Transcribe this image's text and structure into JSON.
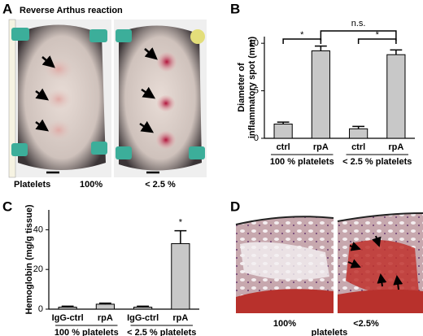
{
  "panels": {
    "A": {
      "label": "A",
      "title": "Reverse Arthus reaction",
      "captions": [
        "Platelets",
        "100%",
        "< 2.5 %"
      ]
    },
    "D": {
      "label": "D",
      "captions": [
        "100%",
        "<2.5%"
      ],
      "group": "platelets"
    }
  },
  "chart_data": [
    {
      "type": "bar",
      "panel": "B",
      "ylabel": [
        "Diameter of",
        "inflammatory spot (mm)"
      ],
      "categories": [
        "ctrl",
        "rpA",
        "ctrl",
        "rpA"
      ],
      "groups": [
        "100 % platelets",
        "< 2.5 % platelets"
      ],
      "values": [
        1.5,
        9.2,
        1.0,
        8.8
      ],
      "errors": [
        0.2,
        0.5,
        0.25,
        0.5
      ],
      "color": "#c8c8c8",
      "ylim": [
        0,
        10.7
      ],
      "yticks": [
        0,
        5,
        10
      ],
      "annotations": [
        "*",
        "n.s.",
        "*"
      ]
    },
    {
      "type": "bar",
      "panel": "C",
      "ylabel": [
        "Hemoglobin (mg/g tissue)"
      ],
      "categories": [
        "IgG-ctrl",
        "rpA",
        "IgG-ctrl",
        "rpA"
      ],
      "groups": [
        "100 % platelets",
        "< 2.5 % platelets"
      ],
      "values": [
        1,
        2.5,
        1,
        33
      ],
      "errors": [
        0.5,
        0.5,
        0.5,
        6.5
      ],
      "color": "#c8c8c8",
      "ylim": [
        0,
        50
      ],
      "yticks": [
        0,
        20,
        40
      ],
      "annotations": [
        "*"
      ]
    }
  ]
}
